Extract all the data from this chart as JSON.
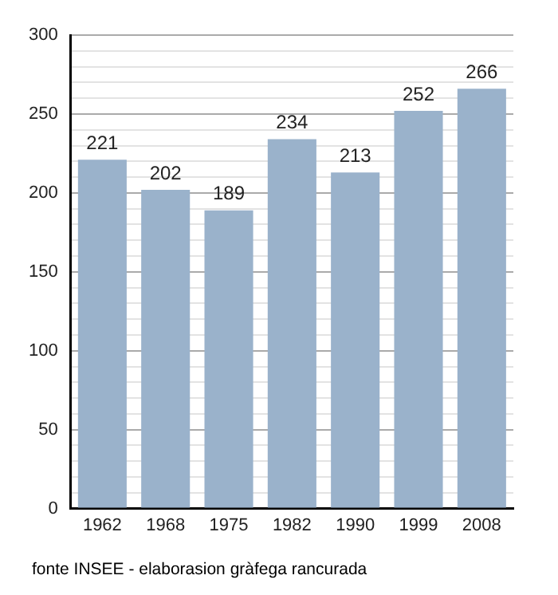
{
  "chart_data": {
    "type": "bar",
    "categories": [
      "1962",
      "1968",
      "1975",
      "1982",
      "1990",
      "1999",
      "2008"
    ],
    "values": [
      221,
      202,
      189,
      234,
      213,
      252,
      266
    ],
    "color": "#9ab2cb",
    "data_labels": true,
    "grid": "y",
    "legend": false,
    "ylim": [
      0,
      300
    ],
    "yticks": [
      0,
      {
        "value": 10,
        "label": null
      },
      {
        "value": 20,
        "label": null
      },
      {
        "value": 30,
        "label": null
      },
      {
        "value": 40,
        "label": null
      },
      50,
      {
        "value": 60,
        "label": null
      },
      {
        "value": 70,
        "label": null
      },
      {
        "value": 80,
        "label": null
      },
      {
        "value": 90,
        "label": null
      },
      100,
      {
        "value": 110,
        "label": null
      },
      {
        "value": 120,
        "label": null
      },
      {
        "value": 130,
        "label": null
      },
      {
        "value": 140,
        "label": null
      },
      150,
      {
        "value": 160,
        "label": null
      },
      {
        "value": 170,
        "label": null
      },
      {
        "value": 180,
        "label": null
      },
      {
        "value": 190,
        "label": null
      },
      200,
      {
        "value": 210,
        "label": null
      },
      {
        "value": 220,
        "label": null
      },
      {
        "value": 230,
        "label": null
      },
      {
        "value": 240,
        "label": null
      },
      250,
      {
        "value": 260,
        "label": null
      },
      {
        "value": 270,
        "label": null
      },
      {
        "value": 280,
        "label": null
      },
      {
        "value": 290,
        "label": null
      },
      300
    ],
    "annotations": [
      "fonte INSEE - elaborasion gràfega rancurada"
    ]
  }
}
